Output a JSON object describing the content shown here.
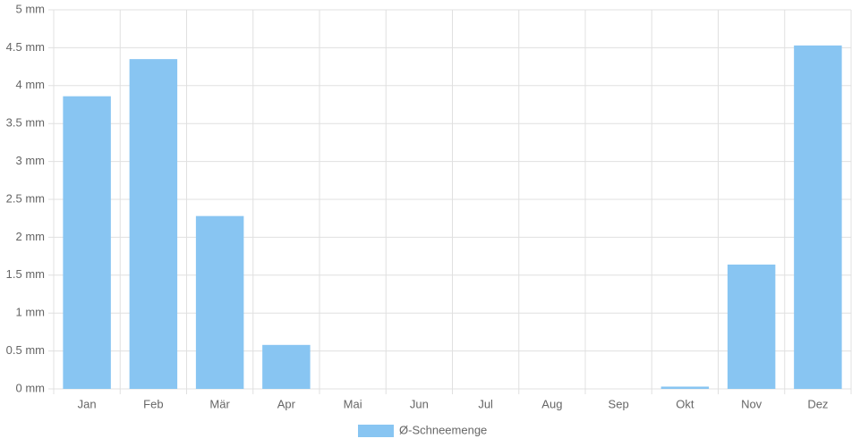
{
  "chart_data": {
    "type": "bar",
    "categories": [
      "Jan",
      "Feb",
      "Mär",
      "Apr",
      "Mai",
      "Jun",
      "Jul",
      "Aug",
      "Sep",
      "Okt",
      "Nov",
      "Dez"
    ],
    "series": [
      {
        "name": "Ø-Schneemenge",
        "color": "#88c5f2",
        "values": [
          3.86,
          4.35,
          2.28,
          0.58,
          0,
          0,
          0,
          0,
          0,
          0.03,
          1.64,
          4.53
        ]
      }
    ],
    "ylim": [
      0,
      5
    ],
    "yticks": [
      {
        "value": 0,
        "label": "0 mm"
      },
      {
        "value": 0.5,
        "label": "0.5 mm"
      },
      {
        "value": 1,
        "label": "1 mm"
      },
      {
        "value": 1.5,
        "label": "1.5 mm"
      },
      {
        "value": 2,
        "label": "2 mm"
      },
      {
        "value": 2.5,
        "label": "2.5 mm"
      },
      {
        "value": 3,
        "label": "3 mm"
      },
      {
        "value": 3.5,
        "label": "3.5 mm"
      },
      {
        "value": 4,
        "label": "4 mm"
      },
      {
        "value": 4.5,
        "label": "4.5 mm"
      },
      {
        "value": 5,
        "label": "5 mm"
      }
    ],
    "grid": true,
    "legend": "bottom"
  }
}
